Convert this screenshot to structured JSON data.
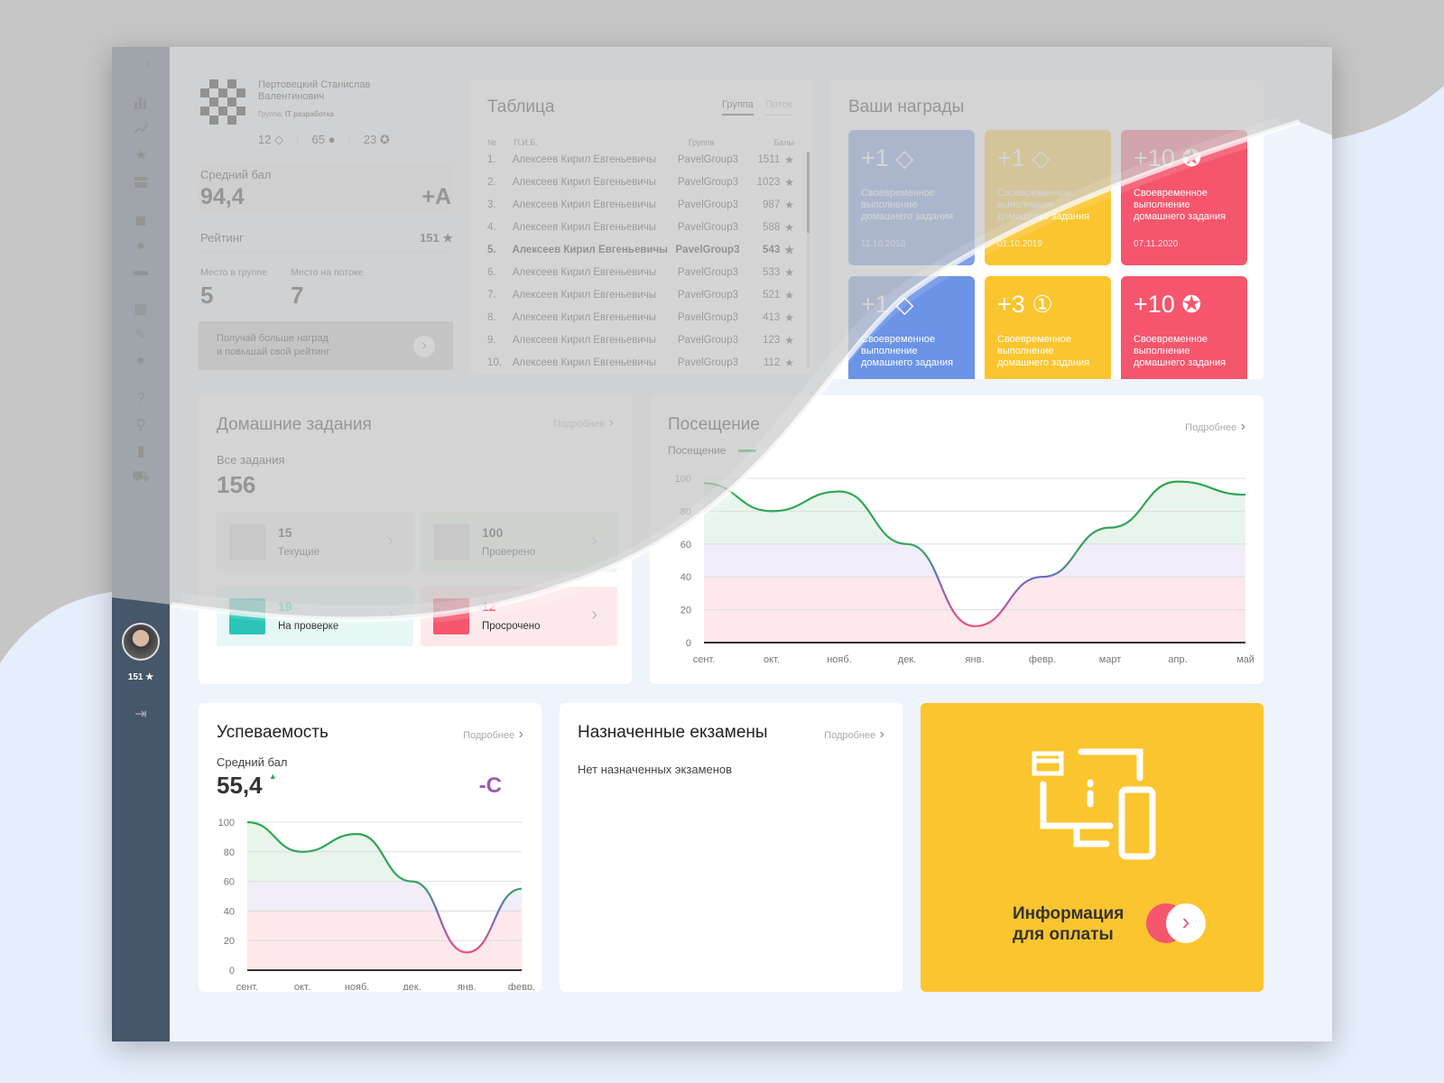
{
  "profile": {
    "name_line1": "Пертовецкий Станислав",
    "name_line2": "Валентинович",
    "group_label": "Группа:",
    "group_value": "IT разработка",
    "stat1": "12",
    "stat2": "65",
    "stat3": "23"
  },
  "avg": {
    "label": "Средний бал",
    "value": "94,4",
    "grade": "+A"
  },
  "rating": {
    "label": "Рейтинг",
    "value": "151"
  },
  "place": {
    "group_label": "Место в группе",
    "group_value": "5",
    "stream_label": "Место на потоке",
    "stream_value": "7"
  },
  "promo": {
    "line1": "Получай больше наград",
    "line2": "и повышай свой рейтинг"
  },
  "table": {
    "title": "Таблица",
    "tab_group": "Группа",
    "tab_stream": "Поток",
    "h_no": "№",
    "h_name": "П.И.Б.",
    "h_group": "Группа",
    "h_points": "Балы",
    "rows": [
      {
        "n": "1.",
        "name": "Алексеев Кирил Евгеньевичы",
        "group": "PavelGroup3",
        "points": "1511"
      },
      {
        "n": "2.",
        "name": "Алексеев Кирил Евгеньевичы",
        "group": "PavelGroup3",
        "points": "1023"
      },
      {
        "n": "3.",
        "name": "Алексеев Кирил Евгеньевичы",
        "group": "PavelGroup3",
        "points": "987"
      },
      {
        "n": "4.",
        "name": "Алексеев Кирил Евгеньевичы",
        "group": "PavelGroup3",
        "points": "588"
      },
      {
        "n": "5.",
        "name": "Алексеев Кирил Евгеньевичы",
        "group": "PavelGroup3",
        "points": "543"
      },
      {
        "n": "6.",
        "name": "Алексеев Кирил Евгеньевичы",
        "group": "PavelGroup3",
        "points": "533"
      },
      {
        "n": "7.",
        "name": "Алексеев Кирил Евгеньевичы",
        "group": "PavelGroup3",
        "points": "521"
      },
      {
        "n": "8.",
        "name": "Алексеев Кирил Евгеньевичы",
        "group": "PavelGroup3",
        "points": "413"
      },
      {
        "n": "9.",
        "name": "Алексеев Кирил Евгеньевичы",
        "group": "PavelGroup3",
        "points": "123"
      },
      {
        "n": "10.",
        "name": "Алексеев Кирил Евгеньевичы",
        "group": "PavelGroup3",
        "points": "112"
      }
    ]
  },
  "awards": {
    "title": "Ваши награды",
    "items": [
      {
        "value": "+1",
        "text": "Своевременное выполнение домашнего задания",
        "date": "11.10.2018",
        "color": "#6b93e6"
      },
      {
        "value": "+1",
        "text": "Своевременное выполнение домашнего задания",
        "date": "01.10.2019",
        "color": "#fbc52f"
      },
      {
        "value": "+10",
        "text": "Своевременное выполнение домашнего задания",
        "date": "07.11.2020",
        "color": "#f5566e"
      },
      {
        "value": "+1",
        "text": "Своевременное выполнение домашнего задания",
        "date": "",
        "color": "#6b93e6"
      },
      {
        "value": "+3",
        "text": "Своевременное выполнение домашнего задания",
        "date": "",
        "color": "#fbc52f"
      },
      {
        "value": "+10",
        "text": "Своевременное выполнение домашнего задания",
        "date": "",
        "color": "#f5566e"
      }
    ]
  },
  "homework": {
    "title": "Домашние задания",
    "more": "Подробнее",
    "all_label": "Все задания",
    "all_value": "156",
    "items": [
      {
        "value": "15",
        "label": "Текущие"
      },
      {
        "value": "100",
        "label": "Проверено"
      },
      {
        "value": "19",
        "label": "На проверке"
      },
      {
        "value": "12",
        "label": "Просрочено"
      }
    ]
  },
  "attendance": {
    "title": "Посещение",
    "more": "Подробнее",
    "legend": "Посещение"
  },
  "performance": {
    "title": "Успеваемость",
    "more": "Подробнее",
    "avg_label": "Средний бал",
    "avg_value": "55,4",
    "grade": "-C"
  },
  "exams": {
    "title": "Назначенные екзамены",
    "more": "Подробнее",
    "empty": "Нет назначенных экзаменов"
  },
  "payment": {
    "line1": "Информация",
    "line2": "для оплаты"
  },
  "sidebar": {
    "rating": "151"
  },
  "chart_data": [
    {
      "type": "line",
      "title": "Посещение",
      "categories": [
        "сент.",
        "окт.",
        "нояб.",
        "дек.",
        "янв.",
        "февр.",
        "март",
        "апр.",
        "май"
      ],
      "ylim": [
        0,
        100
      ],
      "yticks": [
        0,
        20,
        40,
        60,
        80,
        100
      ],
      "series": [
        {
          "name": "Посещение",
          "values": [
            97,
            80,
            92,
            60,
            10,
            40,
            70,
            98,
            90
          ]
        }
      ]
    },
    {
      "type": "line",
      "title": "Успеваемость",
      "categories": [
        "сент.",
        "окт.",
        "нояб.",
        "дек.",
        "янв.",
        "февр."
      ],
      "ylim": [
        0,
        100
      ],
      "yticks": [
        0,
        20,
        40,
        60,
        80,
        100
      ],
      "series": [
        {
          "name": "",
          "values": [
            100,
            80,
            92,
            60,
            12,
            55
          ]
        }
      ]
    }
  ]
}
